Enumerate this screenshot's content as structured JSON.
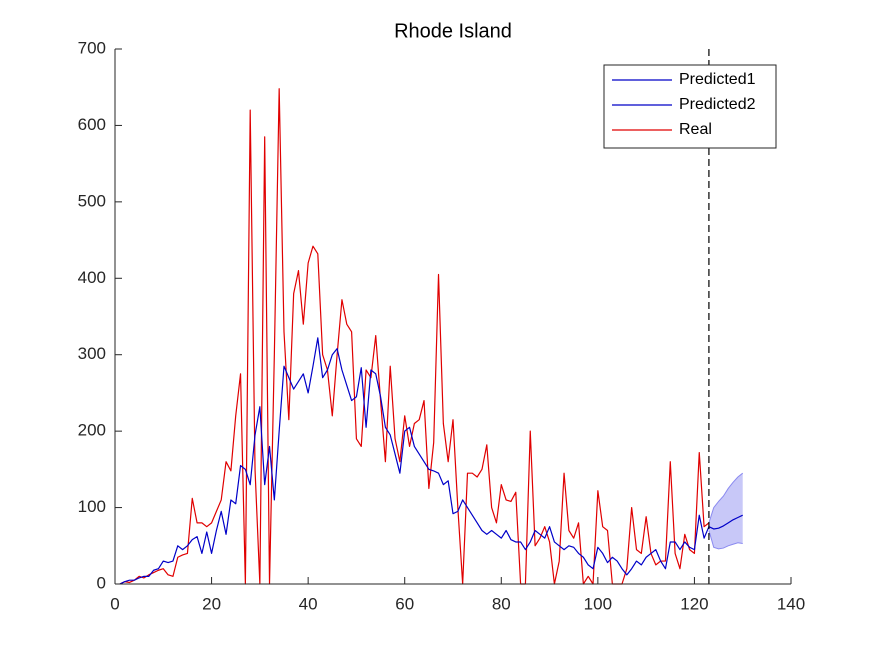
{
  "chart_data": {
    "type": "line",
    "title": "Rhode Island",
    "xlim": [
      0,
      140
    ],
    "ylim": [
      0,
      700
    ],
    "xticks": [
      0,
      20,
      40,
      60,
      80,
      100,
      120,
      140
    ],
    "yticks": [
      0,
      100,
      200,
      300,
      400,
      500,
      600,
      700
    ],
    "grid": false,
    "legend": "northeast",
    "vline": 123,
    "series": [
      {
        "name": "Predicted1",
        "color": "#0000c8",
        "x": [
          1,
          2,
          3,
          4,
          5,
          6,
          7,
          8,
          9,
          10,
          11,
          12,
          13,
          14,
          15,
          16,
          17,
          18,
          19,
          20,
          21,
          22,
          23,
          24,
          25,
          26,
          27,
          28,
          29,
          30,
          31,
          32,
          33,
          34,
          35,
          36,
          37,
          38,
          39,
          40,
          41,
          42,
          43,
          44,
          45,
          46,
          47,
          48,
          49,
          50,
          51,
          52,
          53,
          54,
          55,
          56,
          57,
          58,
          59,
          60,
          61,
          62,
          63,
          64,
          65,
          66,
          67,
          68,
          69,
          70,
          71,
          72,
          73,
          74,
          75,
          76,
          77,
          78,
          79,
          80,
          81,
          82,
          83,
          84,
          85,
          86,
          87,
          88,
          89,
          90,
          91,
          92,
          93,
          94,
          95,
          96,
          97,
          98,
          99,
          100,
          101,
          102,
          103,
          104,
          105,
          106,
          107,
          108,
          109,
          110,
          111,
          112,
          113,
          114,
          115,
          116,
          117,
          118,
          119,
          120,
          121,
          122,
          123
        ],
        "values": [
          0,
          3,
          5,
          5,
          8,
          10,
          10,
          18,
          20,
          30,
          28,
          30,
          50,
          45,
          50,
          58,
          62,
          40,
          68,
          40,
          70,
          95,
          65,
          110,
          105,
          155,
          150,
          130,
          195,
          232,
          130,
          180,
          110,
          200,
          285,
          270,
          255,
          265,
          275,
          250,
          285,
          322,
          270,
          280,
          300,
          308,
          280,
          260,
          240,
          245,
          283,
          205,
          280,
          275,
          245,
          205,
          195,
          170,
          145,
          200,
          205,
          180,
          170,
          160,
          150,
          148,
          145,
          130,
          135,
          92,
          95,
          110,
          100,
          90,
          80,
          70,
          65,
          70,
          65,
          60,
          70,
          58,
          55,
          55,
          45,
          55,
          70,
          65,
          60,
          75,
          55,
          50,
          45,
          50,
          48,
          40,
          35,
          25,
          20,
          48,
          40,
          28,
          35,
          30,
          20,
          12,
          20,
          30,
          25,
          35,
          40,
          45,
          30,
          20,
          55,
          55,
          45,
          55,
          48,
          45,
          90,
          60,
          75
        ]
      },
      {
        "name": "Predicted2",
        "color": "#0000c8",
        "x": [
          123,
          124,
          125,
          126,
          127,
          128,
          129,
          130
        ],
        "values": [
          75,
          72,
          73,
          76,
          80,
          84,
          87,
          90
        ]
      },
      {
        "name": "Real",
        "color": "#e00000",
        "x": [
          1,
          2,
          3,
          4,
          5,
          6,
          7,
          8,
          9,
          10,
          11,
          12,
          13,
          14,
          15,
          16,
          17,
          18,
          19,
          20,
          21,
          22,
          23,
          24,
          25,
          26,
          27,
          28,
          29,
          30,
          31,
          32,
          33,
          34,
          35,
          36,
          37,
          38,
          39,
          40,
          41,
          42,
          43,
          44,
          45,
          46,
          47,
          48,
          49,
          50,
          51,
          52,
          53,
          54,
          55,
          56,
          57,
          58,
          59,
          60,
          61,
          62,
          63,
          64,
          65,
          66,
          67,
          68,
          69,
          70,
          71,
          72,
          73,
          74,
          75,
          76,
          77,
          78,
          79,
          80,
          81,
          82,
          83,
          84,
          85,
          86,
          87,
          88,
          89,
          90,
          91,
          92,
          93,
          94,
          95,
          96,
          97,
          98,
          99,
          100,
          101,
          102,
          103,
          104,
          105,
          106,
          107,
          108,
          109,
          110,
          111,
          112,
          113,
          114,
          115,
          116,
          117,
          118,
          119,
          120,
          121,
          122,
          123
        ],
        "values": [
          0,
          3,
          2,
          5,
          10,
          8,
          12,
          15,
          18,
          20,
          12,
          10,
          35,
          38,
          40,
          112,
          80,
          80,
          75,
          80,
          95,
          110,
          160,
          148,
          220,
          275,
          0,
          620,
          150,
          0,
          585,
          0,
          300,
          648,
          330,
          215,
          380,
          410,
          340,
          420,
          442,
          432,
          300,
          280,
          220,
          300,
          372,
          340,
          330,
          190,
          180,
          280,
          270,
          325,
          240,
          160,
          285,
          190,
          160,
          220,
          180,
          210,
          215,
          240,
          125,
          185,
          405,
          210,
          160,
          215,
          100,
          0,
          145,
          145,
          140,
          150,
          182,
          100,
          80,
          130,
          110,
          108,
          120,
          0,
          0,
          200,
          50,
          60,
          75,
          55,
          0,
          30,
          145,
          70,
          60,
          80,
          0,
          10,
          0,
          122,
          75,
          70,
          0,
          0,
          0,
          20,
          100,
          45,
          40,
          88,
          40,
          25,
          30,
          30,
          160,
          40,
          20,
          65,
          45,
          40,
          172,
          75,
          80
        ]
      }
    ],
    "band": {
      "color": "#c8c8f8",
      "x": [
        123,
        124,
        125,
        126,
        127,
        128,
        129,
        130
      ],
      "upper": [
        80,
        100,
        108,
        115,
        125,
        133,
        140,
        145
      ],
      "lower": [
        70,
        48,
        46,
        47,
        50,
        52,
        54,
        53
      ]
    }
  }
}
